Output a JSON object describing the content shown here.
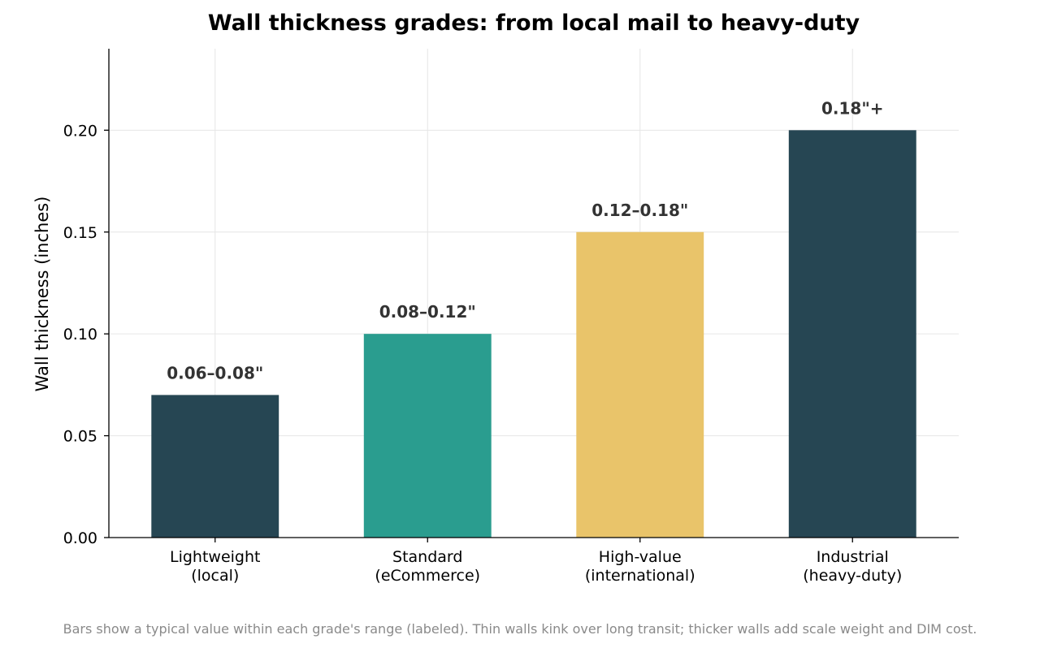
{
  "chart_data": {
    "type": "bar",
    "title": "Wall thickness grades: from local mail to heavy-duty",
    "xlabel": "",
    "ylabel": "Wall thickness (inches)",
    "categories": [
      [
        "Lightweight",
        "(local)"
      ],
      [
        "Standard",
        "(eCommerce)"
      ],
      [
        "High-value",
        "(international)"
      ],
      [
        "Industrial",
        "(heavy-duty)"
      ]
    ],
    "values": [
      0.07,
      0.1,
      0.15,
      0.2
    ],
    "bar_labels": [
      "0.06–0.08\"",
      "0.08–0.12\"",
      "0.12–0.18\"",
      "0.18\"+"
    ],
    "colors": [
      "#264653",
      "#2a9d8f",
      "#e9c46a",
      "#264653"
    ],
    "ylim": [
      0,
      0.24
    ],
    "yticks": [
      0.0,
      0.05,
      0.1,
      0.15,
      0.2
    ],
    "ytick_labels": [
      "0.00",
      "0.05",
      "0.10",
      "0.15",
      "0.20"
    ],
    "grid": true,
    "caption": "Bars show a typical value within each grade's range (labeled). Thin walls kink over long transit; thicker walls add scale weight and DIM cost."
  }
}
